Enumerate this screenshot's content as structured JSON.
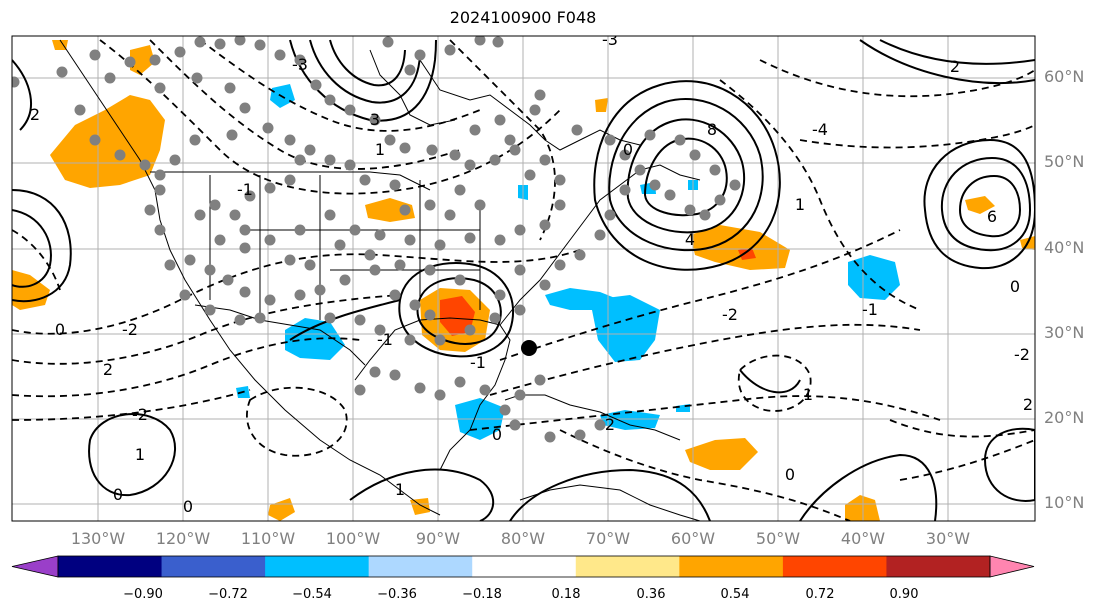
{
  "title": "2024100900 F048",
  "lat_labels": [
    "60°N",
    "50°N",
    "40°N",
    "30°N",
    "20°N",
    "10°N"
  ],
  "lon_labels": [
    "130°W",
    "120°W",
    "110°W",
    "100°W",
    "90°W",
    "80°W",
    "70°W",
    "60°W",
    "50°W",
    "40°W",
    "30°W"
  ],
  "colorbar": {
    "tick_labels": [
      "−0.90",
      "−0.72",
      "−0.54",
      "−0.36",
      "−0.18",
      "0.18",
      "0.36",
      "0.54",
      "0.72",
      "0.90"
    ],
    "colors": [
      "#9a3fc9",
      "#000080",
      "#3a5fcd",
      "#00bfff",
      "#add8ff",
      "#ffffff",
      "#ffe88a",
      "#ffa500",
      "#ff4500",
      "#b22222",
      "#ff85b0"
    ],
    "under_color": "#9a3fc9",
    "over_color": "#ff85b0"
  },
  "contour_labels": [
    "2",
    "0",
    "-2",
    "3",
    "-1",
    "1",
    "-3",
    "-4",
    "6",
    "8",
    "-2",
    "0",
    "2",
    "1",
    "-1",
    "4",
    "2",
    "-2",
    "1",
    "0",
    "0",
    "1",
    "-1",
    "0",
    "2",
    "-3",
    "0",
    "-1",
    "-2",
    "1",
    "0",
    "2"
  ],
  "colors": {
    "land_line": "#000000",
    "grid": "#b0b0b0",
    "station": "#808080",
    "marker": "#000000"
  }
}
